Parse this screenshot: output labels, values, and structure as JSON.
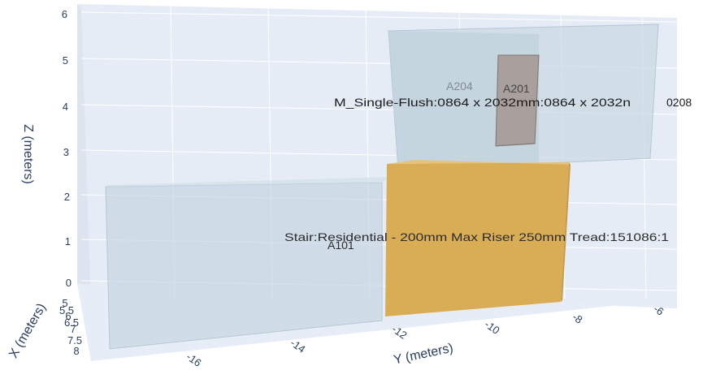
{
  "chart_data": {
    "type": "3d-mesh",
    "axes": {
      "x": {
        "title": "X (meters)",
        "ticks": [
          "5",
          "5.5",
          "6",
          "6.5",
          "7",
          "7.5",
          "8"
        ]
      },
      "y": {
        "title": "Y (meters)",
        "ticks": [
          "-16",
          "-14",
          "-12",
          "-10",
          "-8",
          "-6"
        ]
      },
      "z": {
        "title": "Z (meters)",
        "ticks": [
          "0",
          "1",
          "2",
          "3",
          "4",
          "5",
          "6"
        ]
      }
    },
    "elements": [
      {
        "name": "A101",
        "kind": "room",
        "color": "#cfdde6",
        "opacity": 0.55,
        "y_range": [
          -17.5,
          -6
        ],
        "z_range": [
          0,
          2.3
        ]
      },
      {
        "name": "A204",
        "kind": "room",
        "color": "#cfdde6",
        "opacity": 0.55,
        "y_range": [
          -12,
          -6
        ],
        "z_range": [
          3,
          5.6
        ]
      },
      {
        "name": "A201",
        "kind": "room",
        "color": "#cfdde6",
        "opacity": 0.55,
        "y_range": [
          -10,
          -8.8
        ],
        "z_range": [
          3.1,
          5.2
        ]
      },
      {
        "name": "M_Single-Flush:0864 x 2032mm:0864 x 2032mm",
        "kind": "door",
        "color": "#9b8f8d",
        "y_range": [
          -10,
          -9.4
        ],
        "z_range": [
          3.1,
          5.2
        ]
      },
      {
        "name": "Stair:Residential - 200mm Max Riser 250mm Tread:151086:1",
        "kind": "stair",
        "color": "#dcb25a",
        "y_range": [
          -12,
          -8
        ],
        "z_range": [
          0,
          2.7
        ]
      }
    ],
    "labels": {
      "a204": "A204",
      "a201": "A201",
      "door": "M_Single-Flush:0864 x 2032mm:0864 x 2032n",
      "door_suffix": "0208",
      "stair": "Stair:Residential - 200mm Max Riser 250mm Tread:151086:1",
      "a101": "A101"
    },
    "grid": true,
    "background": "#e5ecf6"
  }
}
